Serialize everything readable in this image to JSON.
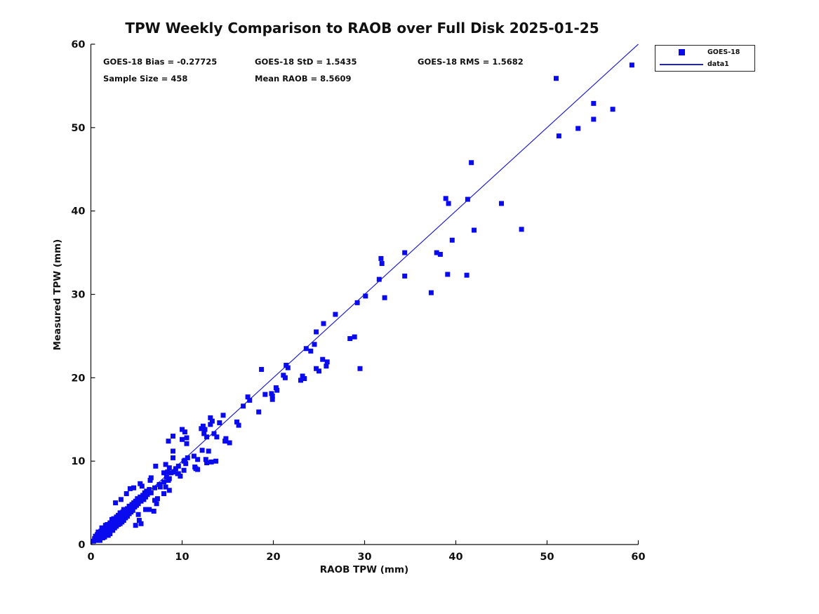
{
  "title": "TPW Weekly Comparison to RAOB over Full Disk 2025-01-25",
  "stats": {
    "bias": "GOES-18 Bias = -0.27725",
    "std": "GOES-18 StD = 1.5435",
    "rms": "GOES-18 RMS = 1.5682",
    "sample_size": "Sample Size = 458",
    "mean_raob": "Mean RAOB = 8.5609"
  },
  "legend": {
    "items": [
      {
        "label": "GOES-18",
        "symbol": "square-marker"
      },
      {
        "label": "data1",
        "symbol": "line"
      }
    ]
  },
  "colors": {
    "marker": "#0a0aef",
    "line": "#2121cc",
    "axis": "#111111",
    "text": "#111111"
  },
  "chart_data": {
    "type": "scatter",
    "title": "TPW Weekly Comparison to RAOB over Full Disk 2025-01-25",
    "xlabel": "RAOB TPW (mm)",
    "ylabel": "Measured TPW (mm)",
    "xlim": [
      0,
      60
    ],
    "ylim": [
      0,
      60
    ],
    "xticks": [
      0,
      10,
      20,
      30,
      40,
      50,
      60
    ],
    "yticks": [
      0,
      10,
      20,
      30,
      40,
      50,
      60
    ],
    "grid": false,
    "legend_position": "upper-right-outside",
    "line": {
      "name": "data1",
      "from": [
        0,
        0
      ],
      "to": [
        60,
        60
      ]
    },
    "series": [
      {
        "name": "GOES-18",
        "marker": "square",
        "points": [
          [
            59.3,
            57.5
          ],
          [
            51.0,
            55.9
          ],
          [
            55.1,
            52.9
          ],
          [
            57.2,
            52.2
          ],
          [
            55.1,
            51.0
          ],
          [
            53.4,
            49.9
          ],
          [
            51.3,
            49.0
          ],
          [
            41.7,
            45.8
          ],
          [
            38.9,
            41.5
          ],
          [
            39.2,
            40.9
          ],
          [
            41.3,
            41.4
          ],
          [
            45.0,
            40.9
          ],
          [
            42.0,
            37.7
          ],
          [
            47.2,
            37.8
          ],
          [
            39.6,
            36.5
          ],
          [
            34.4,
            35.0
          ],
          [
            37.9,
            35.0
          ],
          [
            38.3,
            34.8
          ],
          [
            31.8,
            34.3
          ],
          [
            31.9,
            33.7
          ],
          [
            34.4,
            32.2
          ],
          [
            39.1,
            32.4
          ],
          [
            41.2,
            32.3
          ],
          [
            31.6,
            31.8
          ],
          [
            37.3,
            30.2
          ],
          [
            30.1,
            29.8
          ],
          [
            32.2,
            29.6
          ],
          [
            29.2,
            29.0
          ],
          [
            26.8,
            27.6
          ],
          [
            25.5,
            26.5
          ],
          [
            24.7,
            25.5
          ],
          [
            28.4,
            24.7
          ],
          [
            28.9,
            24.9
          ],
          [
            24.5,
            24.0
          ],
          [
            23.6,
            23.5
          ],
          [
            24.1,
            23.2
          ],
          [
            25.4,
            22.2
          ],
          [
            25.9,
            21.9
          ],
          [
            25.8,
            21.4
          ],
          [
            21.4,
            21.5
          ],
          [
            21.6,
            21.2
          ],
          [
            18.7,
            21.0
          ],
          [
            24.7,
            21.1
          ],
          [
            25.0,
            20.8
          ],
          [
            29.5,
            21.1
          ],
          [
            21.1,
            20.3
          ],
          [
            21.3,
            20.0
          ],
          [
            23.2,
            20.2
          ],
          [
            23.4,
            19.9
          ],
          [
            23.0,
            19.7
          ],
          [
            20.3,
            18.8
          ],
          [
            20.4,
            18.5
          ],
          [
            19.8,
            18.1
          ],
          [
            19.9,
            17.8
          ],
          [
            19.1,
            18.0
          ],
          [
            19.9,
            17.4
          ],
          [
            17.2,
            17.7
          ],
          [
            17.4,
            17.3
          ],
          [
            16.7,
            16.6
          ],
          [
            18.4,
            15.9
          ],
          [
            14.5,
            15.5
          ],
          [
            13.1,
            15.2
          ],
          [
            13.3,
            14.8
          ],
          [
            13.1,
            14.4
          ],
          [
            14.1,
            14.6
          ],
          [
            16.0,
            14.7
          ],
          [
            16.2,
            14.3
          ],
          [
            12.3,
            14.2
          ],
          [
            12.5,
            13.8
          ],
          [
            12.4,
            13.3
          ],
          [
            12.7,
            12.9
          ],
          [
            13.5,
            13.3
          ],
          [
            13.8,
            12.9
          ],
          [
            12.1,
            13.9
          ],
          [
            14.8,
            12.7
          ],
          [
            10.0,
            13.8
          ],
          [
            10.3,
            13.5
          ],
          [
            10.5,
            12.8
          ],
          [
            10.0,
            12.6
          ],
          [
            10.5,
            12.1
          ],
          [
            9.0,
            13.0
          ],
          [
            8.5,
            12.4
          ],
          [
            12.2,
            11.3
          ],
          [
            12.9,
            11.2
          ],
          [
            14.7,
            12.4
          ],
          [
            15.2,
            12.2
          ],
          [
            9.0,
            11.2
          ],
          [
            9.0,
            10.4
          ],
          [
            10.6,
            10.4
          ],
          [
            11.3,
            10.6
          ],
          [
            11.7,
            10.2
          ],
          [
            10.3,
            10.1
          ],
          [
            12.6,
            10.2
          ],
          [
            13.2,
            9.9
          ],
          [
            13.7,
            10.0
          ],
          [
            12.7,
            9.8
          ],
          [
            10.2,
            10.0
          ],
          [
            10.4,
            9.7
          ],
          [
            9.6,
            9.4
          ],
          [
            9.3,
            9.1
          ],
          [
            10.2,
            8.9
          ],
          [
            9.6,
            8.5
          ],
          [
            11.4,
            9.3
          ],
          [
            11.7,
            9.0
          ],
          [
            11.5,
            9.1
          ],
          [
            7.1,
            9.4
          ],
          [
            8.2,
            9.6
          ],
          [
            8.6,
            9.2
          ],
          [
            8.4,
            8.7
          ],
          [
            8.8,
            8.6
          ],
          [
            9.1,
            8.7
          ],
          [
            9.5,
            8.5
          ],
          [
            9.8,
            8.2
          ],
          [
            8.0,
            8.6
          ],
          [
            8.3,
            8.1
          ],
          [
            8.5,
            7.7
          ],
          [
            8.6,
            7.9
          ],
          [
            8.2,
            6.9
          ],
          [
            8.6,
            6.5
          ],
          [
            6.6,
            8.0
          ],
          [
            8.0,
            7.5
          ],
          [
            0.3,
            0.4
          ],
          [
            0.4,
            0.7
          ],
          [
            0.5,
            0.5
          ],
          [
            0.5,
            1.0
          ],
          [
            0.6,
            0.6
          ],
          [
            0.7,
            1.2
          ],
          [
            0.7,
            0.5
          ],
          [
            0.8,
            0.9
          ],
          [
            0.8,
            1.5
          ],
          [
            0.9,
            0.7
          ],
          [
            1.0,
            1.1
          ],
          [
            1.0,
            0.5
          ],
          [
            1.1,
            1.6
          ],
          [
            1.1,
            0.9
          ],
          [
            1.2,
            1.2
          ],
          [
            1.2,
            2.0
          ],
          [
            1.3,
            0.8
          ],
          [
            1.3,
            1.5
          ],
          [
            1.4,
            1.1
          ],
          [
            1.4,
            1.9
          ],
          [
            1.5,
            1.4
          ],
          [
            1.5,
            0.9
          ],
          [
            1.6,
            1.7
          ],
          [
            1.6,
            2.3
          ],
          [
            1.7,
            1.2
          ],
          [
            1.7,
            2.0
          ],
          [
            1.8,
            1.5
          ],
          [
            1.8,
            2.4
          ],
          [
            1.9,
            1.8
          ],
          [
            1.9,
            1.1
          ],
          [
            2.0,
            2.2
          ],
          [
            2.0,
            1.6
          ],
          [
            2.1,
            2.6
          ],
          [
            2.1,
            1.3
          ],
          [
            2.2,
            1.9
          ],
          [
            2.2,
            2.4
          ],
          [
            2.3,
            2.1
          ],
          [
            2.3,
            3.0
          ],
          [
            2.4,
            1.7
          ],
          [
            2.4,
            2.7
          ],
          [
            2.5,
            2.3
          ],
          [
            2.5,
            3.1
          ],
          [
            2.6,
            2.0
          ],
          [
            2.6,
            2.8
          ],
          [
            2.7,
            2.5
          ],
          [
            2.7,
            5.0
          ],
          [
            2.8,
            2.2
          ],
          [
            2.8,
            3.3
          ],
          [
            2.9,
            2.9
          ],
          [
            3.0,
            2.4
          ],
          [
            3.0,
            3.5
          ],
          [
            3.1,
            2.8
          ],
          [
            3.1,
            3.2
          ],
          [
            3.2,
            2.5
          ],
          [
            3.2,
            3.8
          ],
          [
            3.3,
            3.0
          ],
          [
            3.3,
            5.4
          ],
          [
            3.4,
            3.4
          ],
          [
            3.4,
            2.7
          ],
          [
            3.5,
            3.9
          ],
          [
            3.5,
            3.1
          ],
          [
            3.6,
            2.9
          ],
          [
            3.6,
            4.2
          ],
          [
            3.7,
            3.5
          ],
          [
            3.8,
            4.0
          ],
          [
            3.8,
            3.2
          ],
          [
            3.9,
            6.1
          ],
          [
            3.9,
            3.7
          ],
          [
            4.0,
            4.3
          ],
          [
            4.0,
            3.4
          ],
          [
            4.1,
            4.0
          ],
          [
            4.2,
            4.6
          ],
          [
            4.2,
            3.7
          ],
          [
            4.3,
            6.7
          ],
          [
            4.3,
            4.2
          ],
          [
            4.4,
            3.9
          ],
          [
            4.5,
            4.8
          ],
          [
            4.5,
            4.3
          ],
          [
            4.6,
            4.1
          ],
          [
            4.7,
            6.8
          ],
          [
            4.7,
            5.0
          ],
          [
            4.8,
            4.5
          ],
          [
            4.9,
            2.3
          ],
          [
            4.9,
            5.2
          ],
          [
            5.0,
            4.7
          ],
          [
            5.1,
            5.5
          ],
          [
            5.2,
            3.6
          ],
          [
            5.2,
            4.9
          ],
          [
            5.3,
            2.9
          ],
          [
            5.4,
            7.3
          ],
          [
            5.4,
            5.7
          ],
          [
            5.5,
            2.5
          ],
          [
            5.5,
            5.2
          ],
          [
            5.6,
            7.0
          ],
          [
            5.7,
            5.9
          ],
          [
            5.8,
            5.4
          ],
          [
            5.9,
            6.2
          ],
          [
            6.0,
            4.2
          ],
          [
            6.0,
            5.7
          ],
          [
            6.1,
            6.4
          ],
          [
            6.2,
            6.0
          ],
          [
            6.4,
            4.2
          ],
          [
            6.4,
            6.6
          ],
          [
            6.5,
            7.7
          ],
          [
            6.6,
            6.2
          ],
          [
            6.9,
            4.0
          ],
          [
            7.0,
            5.3
          ],
          [
            7.0,
            6.8
          ],
          [
            7.2,
            4.9
          ],
          [
            7.3,
            5.5
          ],
          [
            7.5,
            7.2
          ],
          [
            7.6,
            6.9
          ],
          [
            8.0,
            6.1
          ]
        ]
      }
    ]
  }
}
